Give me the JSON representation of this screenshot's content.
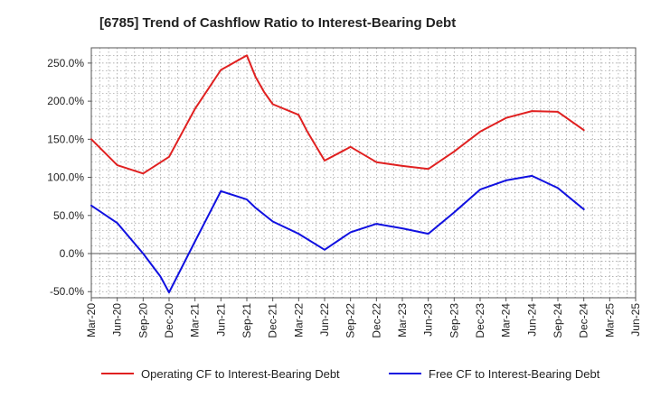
{
  "chart_data": {
    "type": "line",
    "title": "[6785]  Trend of Cashflow Ratio to Interest-Bearing Debt",
    "xlabel": "",
    "ylabel": "",
    "x_ticks": [
      "Mar-20",
      "Jun-20",
      "Sep-20",
      "Dec-20",
      "Mar-21",
      "Jun-21",
      "Sep-21",
      "Dec-21",
      "Mar-22",
      "Jun-22",
      "Sep-22",
      "Dec-22",
      "Mar-23",
      "Jun-23",
      "Sep-23",
      "Dec-23",
      "Mar-24",
      "Jun-24",
      "Sep-24",
      "Dec-24",
      "Mar-25",
      "Jun-25"
    ],
    "y_ticks": [
      -50,
      0,
      50,
      100,
      150,
      200,
      250
    ],
    "y_tick_labels": [
      "-50.0%",
      "0.0%",
      "50.0%",
      "100.0%",
      "150.0%",
      "200.0%",
      "250.0%"
    ],
    "ylim": [
      -58,
      270
    ],
    "grid": true,
    "legend_position": "bottom",
    "series": [
      {
        "name": "Operating CF to Interest-Bearing Debt",
        "color": "#e02020",
        "points": [
          [
            "Mar-20",
            150
          ],
          [
            "Jun-20",
            116
          ],
          [
            "Sep-20",
            105
          ],
          [
            "Dec-20",
            127
          ],
          [
            "Mar-21",
            190
          ],
          [
            "Jun-21",
            241
          ],
          [
            "Sep-21",
            260
          ],
          [
            "Oct-21",
            232
          ],
          [
            "Nov-21",
            212
          ],
          [
            "Dec-21",
            196
          ],
          [
            "Mar-22",
            182
          ],
          [
            "Apr-22",
            160
          ],
          [
            "Jun-22",
            122
          ],
          [
            "Sep-22",
            140
          ],
          [
            "Dec-22",
            120
          ],
          [
            "Mar-23",
            115
          ],
          [
            "Jun-23",
            111
          ],
          [
            "Sep-23",
            134
          ],
          [
            "Dec-23",
            160
          ],
          [
            "Mar-24",
            178
          ],
          [
            "Jun-24",
            187
          ],
          [
            "Sep-24",
            186
          ],
          [
            "Dec-24",
            162
          ]
        ]
      },
      {
        "name": "Free CF to Interest-Bearing Debt",
        "color": "#1010e0",
        "points": [
          [
            "Mar-20",
            63
          ],
          [
            "Jun-20",
            40
          ],
          [
            "Sep-20",
            0
          ],
          [
            "Nov-20",
            -30
          ],
          [
            "Dec-20",
            -51
          ],
          [
            "Mar-21",
            16
          ],
          [
            "Jun-21",
            82
          ],
          [
            "Sep-21",
            71
          ],
          [
            "Oct-21",
            60
          ],
          [
            "Dec-21",
            42
          ],
          [
            "Mar-22",
            26
          ],
          [
            "Jun-22",
            5
          ],
          [
            "Sep-22",
            28
          ],
          [
            "Dec-22",
            39
          ],
          [
            "Mar-23",
            33
          ],
          [
            "Jun-23",
            26
          ],
          [
            "Sep-23",
            54
          ],
          [
            "Dec-23",
            84
          ],
          [
            "Mar-24",
            96
          ],
          [
            "Jun-24",
            102
          ],
          [
            "Sep-24",
            86
          ],
          [
            "Dec-24",
            58
          ]
        ]
      }
    ]
  }
}
